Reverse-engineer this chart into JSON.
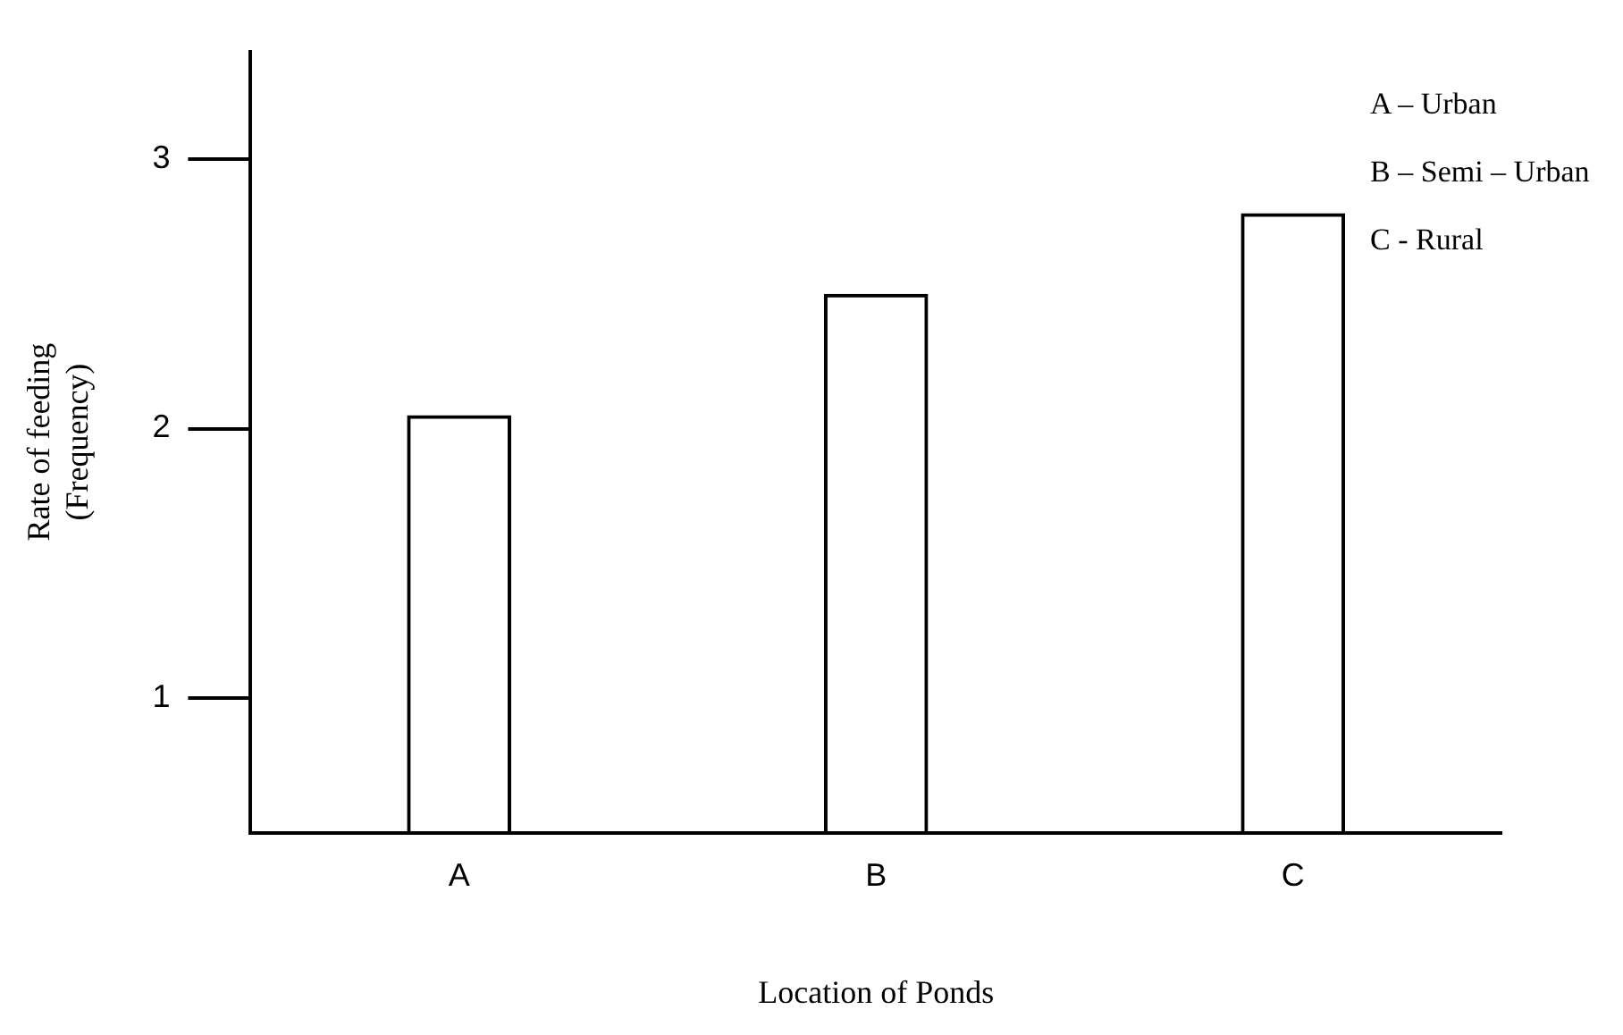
{
  "chart_data": {
    "type": "bar",
    "xlabel": "Location of Ponds",
    "ylabel": "Rate of feeding\n(Frequency)",
    "categories": [
      "A",
      "B",
      "C"
    ],
    "values": [
      2.05,
      2.5,
      2.8
    ],
    "color": "#000000",
    "ylim": [
      0.5,
      3.4
    ],
    "yticks": [
      1,
      2,
      3
    ],
    "grid": false,
    "legend": false,
    "annotations": [
      "A – Urban",
      "B – Semi – Urban",
      "C - Rural"
    ]
  }
}
